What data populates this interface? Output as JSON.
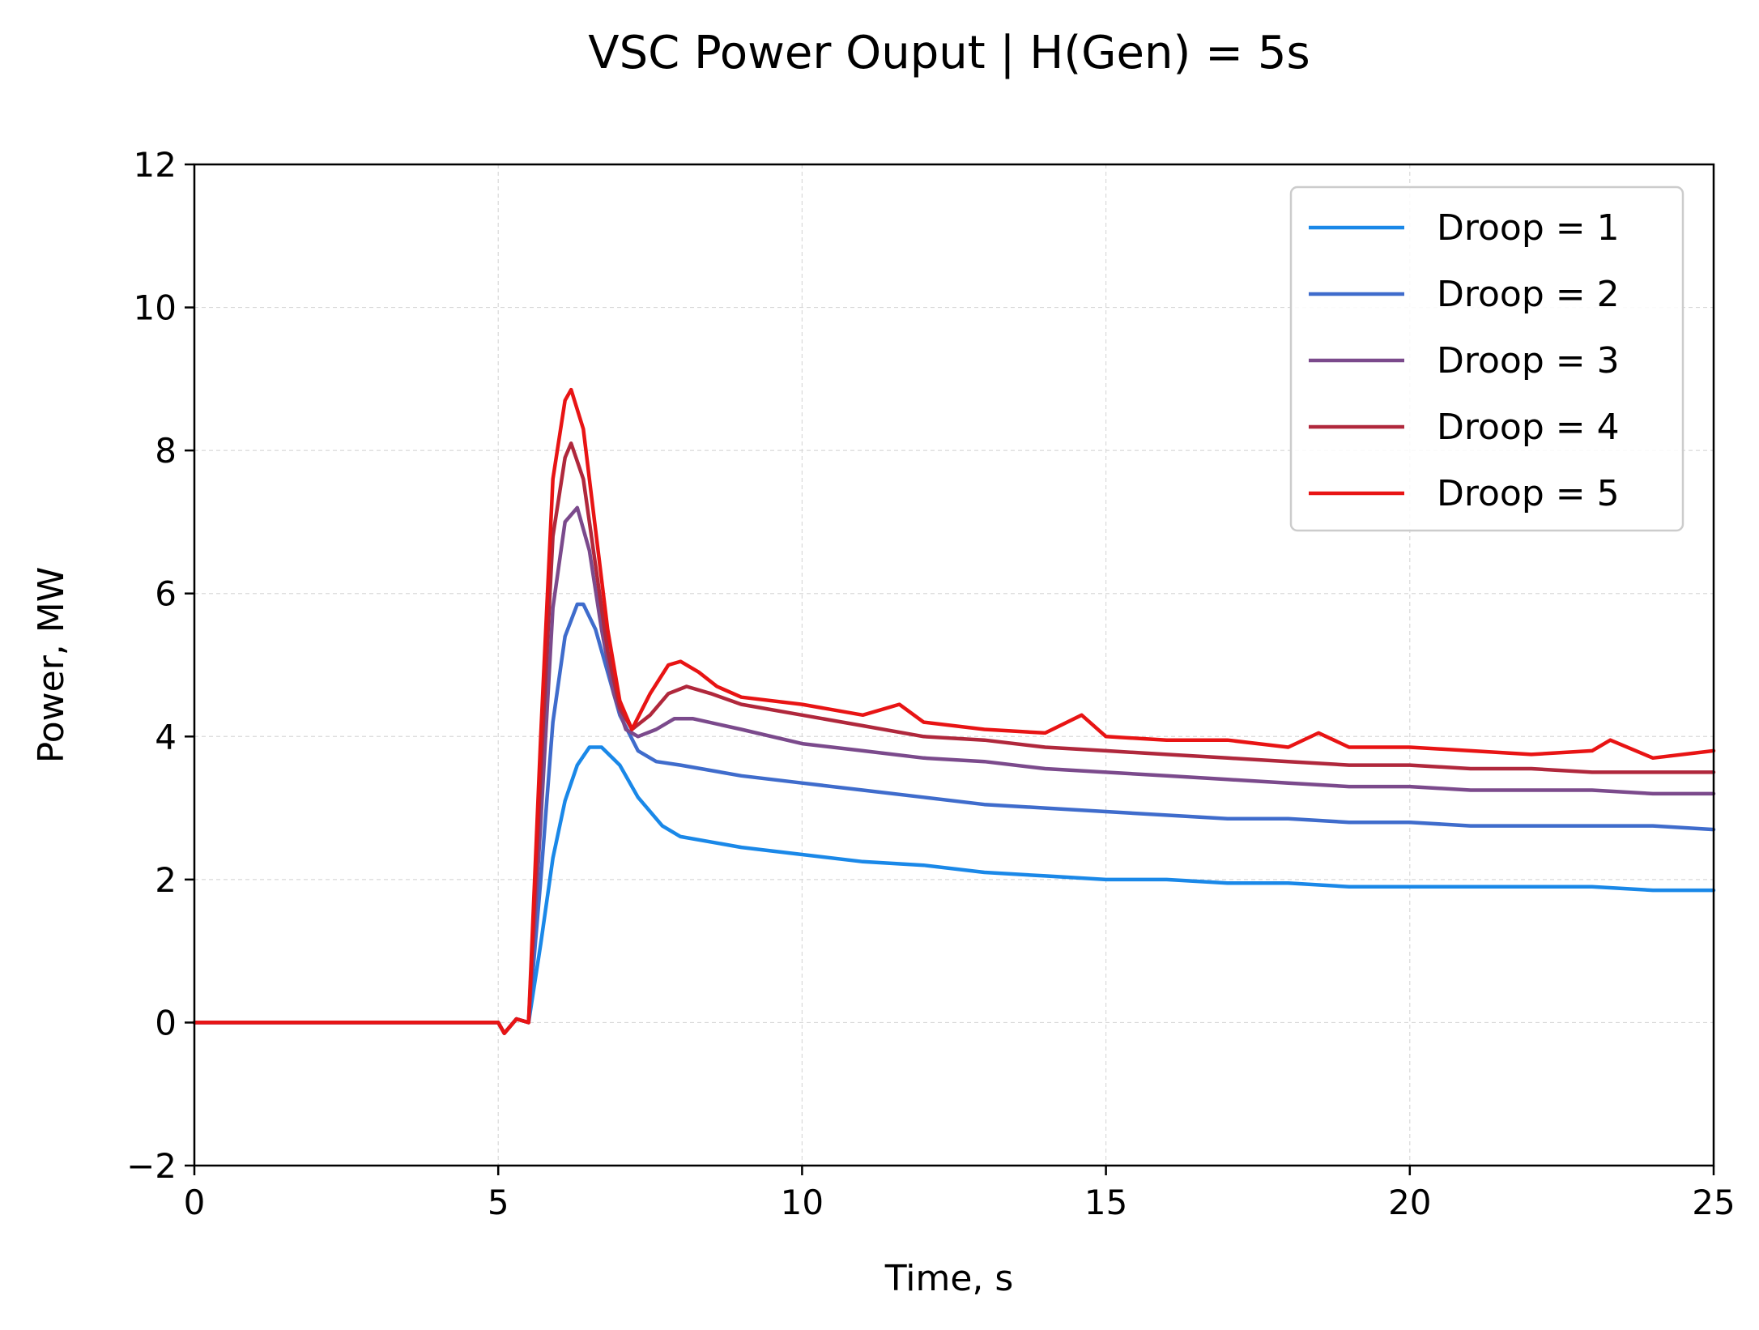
{
  "chart_data": {
    "type": "line",
    "title": "VSC Power Ouput  |  H(Gen) = 5s",
    "xlabel": "Time, s",
    "ylabel": "Power, MW",
    "xlim": [
      0,
      25
    ],
    "ylim": [
      -2,
      12
    ],
    "xticks": [
      0,
      5,
      10,
      15,
      20,
      25
    ],
    "yticks": [
      -2,
      0,
      2,
      4,
      6,
      8,
      10,
      12
    ],
    "xtick_labels": [
      "0",
      "5",
      "10",
      "15",
      "20",
      "25"
    ],
    "ytick_labels": [
      "−2",
      "0",
      "2",
      "4",
      "6",
      "8",
      "10",
      "12"
    ],
    "grid": true,
    "legend_position": "top-right",
    "series": [
      {
        "name": "Droop = 1",
        "color": "#1a88e8",
        "x": [
          0,
          5,
          5.1,
          5.3,
          5.5,
          5.7,
          5.9,
          6.1,
          6.3,
          6.5,
          6.7,
          7.0,
          7.3,
          7.7,
          8.0,
          9.0,
          10.0,
          11.0,
          12.0,
          13.0,
          14.0,
          15.0,
          16.0,
          17.0,
          18.0,
          19.0,
          20.0,
          21.0,
          22.0,
          23.0,
          24.0,
          25.0
        ],
        "y": [
          0,
          0,
          -0.15,
          0.05,
          0.0,
          1.1,
          2.3,
          3.1,
          3.6,
          3.85,
          3.85,
          3.6,
          3.15,
          2.75,
          2.6,
          2.45,
          2.35,
          2.25,
          2.2,
          2.1,
          2.05,
          2.0,
          2.0,
          1.95,
          1.95,
          1.9,
          1.9,
          1.9,
          1.9,
          1.9,
          1.85,
          1.85
        ]
      },
      {
        "name": "Droop = 2",
        "color": "#3f6ccc",
        "x": [
          0,
          5,
          5.1,
          5.3,
          5.5,
          5.7,
          5.9,
          6.1,
          6.3,
          6.4,
          6.6,
          6.8,
          7.0,
          7.3,
          7.6,
          8.0,
          9.0,
          10.0,
          11.0,
          12.0,
          13.0,
          14.0,
          15.0,
          16.0,
          17.0,
          18.0,
          19.0,
          20.0,
          21.0,
          22.0,
          23.0,
          24.0,
          25.0
        ],
        "y": [
          0,
          0,
          -0.15,
          0.05,
          0.0,
          2.0,
          4.2,
          5.4,
          5.85,
          5.85,
          5.5,
          4.9,
          4.3,
          3.8,
          3.65,
          3.6,
          3.45,
          3.35,
          3.25,
          3.15,
          3.05,
          3.0,
          2.95,
          2.9,
          2.85,
          2.85,
          2.8,
          2.8,
          2.75,
          2.75,
          2.75,
          2.75,
          2.7
        ]
      },
      {
        "name": "Droop = 3",
        "color": "#7b4a8c",
        "x": [
          0,
          5,
          5.1,
          5.3,
          5.5,
          5.7,
          5.9,
          6.1,
          6.3,
          6.5,
          6.7,
          6.9,
          7.1,
          7.3,
          7.6,
          7.9,
          8.2,
          9.0,
          10.0,
          11.0,
          12.0,
          13.0,
          14.0,
          15.0,
          16.0,
          17.0,
          18.0,
          19.0,
          20.0,
          21.0,
          22.0,
          23.0,
          24.0,
          25.0
        ],
        "y": [
          0,
          0,
          -0.15,
          0.05,
          0.0,
          2.8,
          5.8,
          7.0,
          7.2,
          6.6,
          5.5,
          4.6,
          4.1,
          4.0,
          4.1,
          4.25,
          4.25,
          4.1,
          3.9,
          3.8,
          3.7,
          3.65,
          3.55,
          3.5,
          3.45,
          3.4,
          3.35,
          3.3,
          3.3,
          3.25,
          3.25,
          3.25,
          3.2,
          3.2
        ]
      },
      {
        "name": "Droop = 4",
        "color": "#b0283c",
        "x": [
          0,
          5,
          5.1,
          5.3,
          5.5,
          5.7,
          5.9,
          6.1,
          6.2,
          6.4,
          6.6,
          6.8,
          7.0,
          7.2,
          7.5,
          7.8,
          8.1,
          8.5,
          9.0,
          10.0,
          11.0,
          12.0,
          13.0,
          14.0,
          15.0,
          16.0,
          17.0,
          18.0,
          19.0,
          20.0,
          21.0,
          22.0,
          23.0,
          24.0,
          25.0
        ],
        "y": [
          0,
          0,
          -0.15,
          0.05,
          0.0,
          3.5,
          6.8,
          7.9,
          8.1,
          7.6,
          6.4,
          5.2,
          4.4,
          4.1,
          4.3,
          4.6,
          4.7,
          4.6,
          4.45,
          4.3,
          4.15,
          4.0,
          3.95,
          3.85,
          3.8,
          3.75,
          3.7,
          3.65,
          3.6,
          3.6,
          3.55,
          3.55,
          3.5,
          3.5,
          3.5
        ]
      },
      {
        "name": "Droop = 5",
        "color": "#e81414",
        "x": [
          0,
          5,
          5.1,
          5.3,
          5.5,
          5.7,
          5.9,
          6.1,
          6.2,
          6.4,
          6.6,
          6.8,
          7.0,
          7.2,
          7.5,
          7.8,
          8.0,
          8.3,
          8.6,
          9.0,
          10.0,
          11.0,
          11.6,
          12.0,
          13.0,
          14.0,
          14.6,
          15.0,
          16.0,
          17.0,
          18.0,
          18.5,
          19.0,
          20.0,
          21.0,
          22.0,
          23.0,
          23.3,
          24.0,
          25.0
        ],
        "y": [
          0,
          0,
          -0.15,
          0.05,
          0.0,
          4.0,
          7.6,
          8.7,
          8.85,
          8.3,
          6.9,
          5.5,
          4.5,
          4.1,
          4.6,
          5.0,
          5.05,
          4.9,
          4.7,
          4.55,
          4.45,
          4.3,
          4.45,
          4.2,
          4.1,
          4.05,
          4.3,
          4.0,
          3.95,
          3.95,
          3.85,
          4.05,
          3.85,
          3.85,
          3.8,
          3.75,
          3.8,
          3.95,
          3.7,
          3.8
        ]
      }
    ]
  }
}
